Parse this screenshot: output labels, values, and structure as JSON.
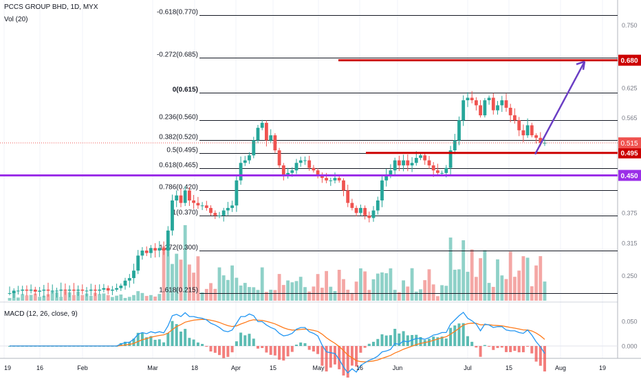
{
  "header": {
    "title": "PCCS GROUP BHD, 1D, MYX",
    "volume_label": "Vol (20)",
    "macd_label": "MACD (12, 26, close, 9)"
  },
  "colors": {
    "up": "#26a69a",
    "down": "#ef5350",
    "vol_up": "#8fd1c8",
    "vol_down": "#f4a7a5",
    "red_line": "#cc0000",
    "purple_line": "#9b2ee8",
    "arrow": "#6a3ec4",
    "macd_line": "#2196f3",
    "signal_line": "#ff7a1a",
    "last_price_bg": "#ef5350"
  },
  "chart_data": {
    "type": "candlestick",
    "title": "PCCS GROUP BHD, 1D, MYX",
    "price_axis": {
      "range": [
        0.2,
        0.8
      ],
      "ticks": [
        "0.750",
        "0.625",
        "0.565",
        "0.375",
        "0.315",
        "0.250"
      ]
    },
    "time_axis": {
      "labels": [
        "19",
        "16",
        "Feb",
        "Mar",
        "18",
        "Apr",
        "15",
        "May",
        "16",
        "Jun",
        "Jul",
        "15",
        "Aug",
        "19"
      ]
    },
    "fib_levels": [
      {
        "label": "-0.618(0.770)",
        "value": 0.77
      },
      {
        "label": "-0.272(0.685)",
        "value": 0.685
      },
      {
        "label": "0(0.615)",
        "value": 0.615
      },
      {
        "label": "0.236(0.560)",
        "value": 0.56
      },
      {
        "label": "0.382(0.520)",
        "value": 0.52
      },
      {
        "label": "0.5(0.495)",
        "value": 0.495
      },
      {
        "label": "0.618(0.465)",
        "value": 0.465
      },
      {
        "label": "0.786(0.420)",
        "value": 0.42
      },
      {
        "label": "1(0.370)",
        "value": 0.37
      },
      {
        "label": "1.272(0.300)",
        "value": 0.3
      },
      {
        "label": "1.618(0.215)",
        "value": 0.215
      }
    ],
    "horizontal_lines": [
      {
        "label": "0.680",
        "value": 0.68,
        "color": "red"
      },
      {
        "label": "0.495",
        "value": 0.495,
        "color": "red"
      },
      {
        "label": "0.450",
        "value": 0.45,
        "color": "purple"
      }
    ],
    "last_price": {
      "label": "0.515",
      "value": 0.515
    },
    "arrow": {
      "from_value": 0.495,
      "to_value": 0.68
    },
    "price_path": [
      0.215,
      0.22,
      0.22,
      0.222,
      0.22,
      0.222,
      0.218,
      0.22,
      0.222,
      0.22,
      0.22,
      0.22,
      0.222,
      0.22,
      0.222,
      0.22,
      0.222,
      0.22,
      0.22,
      0.222,
      0.22,
      0.222,
      0.225,
      0.22,
      0.222,
      0.225,
      0.23,
      0.24,
      0.245,
      0.26,
      0.29,
      0.3,
      0.295,
      0.305,
      0.3,
      0.305,
      0.3,
      0.34,
      0.4,
      0.41,
      0.395,
      0.42,
      0.4,
      0.395,
      0.39,
      0.39,
      0.385,
      0.375,
      0.37,
      0.37,
      0.38,
      0.385,
      0.39,
      0.44,
      0.475,
      0.48,
      0.49,
      0.52,
      0.545,
      0.555,
      0.52,
      0.53,
      0.5,
      0.47,
      0.45,
      0.455,
      0.46,
      0.475,
      0.48,
      0.48,
      0.465,
      0.46,
      0.45,
      0.445,
      0.44,
      0.44,
      0.445,
      0.44,
      0.42,
      0.395,
      0.385,
      0.375,
      0.385,
      0.37,
      0.365,
      0.38,
      0.4,
      0.44,
      0.45,
      0.46,
      0.48,
      0.47,
      0.48,
      0.47,
      0.475,
      0.485,
      0.49,
      0.48,
      0.47,
      0.46,
      0.455,
      0.455,
      0.465,
      0.5,
      0.52,
      0.56,
      0.6,
      0.605,
      0.6,
      0.59,
      0.57,
      0.6,
      0.605,
      0.58,
      0.59,
      0.6,
      0.585,
      0.57,
      0.56,
      0.54,
      0.53,
      0.55,
      0.53,
      0.525,
      0.515,
      0.515
    ]
  }
}
